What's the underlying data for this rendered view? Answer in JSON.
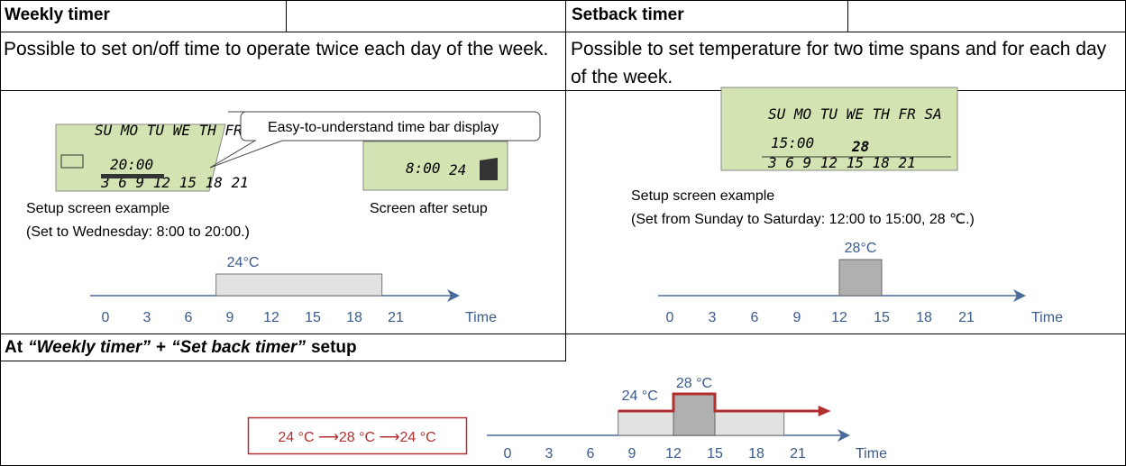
{
  "weekly": {
    "title": "Weekly timer",
    "description": "Possible to set on/off time to operate twice each day of the week.",
    "callout": "Easy-to-understand time bar display",
    "setup_lcd": {
      "days": "SU MO TU WE TH FR SA",
      "time": "20:00",
      "hours": "3 6 9 12 15 18 21"
    },
    "setup_caption": "Setup screen example",
    "setup_note": "(Set to Wednesday: 8:00 to 20:00.)",
    "after_lcd": {
      "time": "8:00",
      "temp": "24"
    },
    "after_caption": "Screen after setup",
    "timeline": {
      "ticks": [
        0,
        3,
        6,
        9,
        12,
        15,
        18,
        21
      ],
      "axis_label": "Time",
      "bar": {
        "label": "24°C",
        "start": 8,
        "end": 20
      }
    }
  },
  "setback": {
    "title": "Setback timer",
    "description": "Possible to set temperature for two time spans and for each day of the week.",
    "lcd": {
      "days": "SU MO TU WE TH FR SA",
      "time": "15:00",
      "temp": "28",
      "hours": "3 6 9 12 15 18 21"
    },
    "caption": "Setup screen example",
    "note": "(Set from Sunday to Saturday: 12:00 to 15:00, 28 ℃.)",
    "timeline": {
      "ticks": [
        0,
        3,
        6,
        9,
        12,
        15,
        18,
        21
      ],
      "axis_label": "Time",
      "bar": {
        "label": "28°C",
        "start": 12,
        "end": 15
      }
    }
  },
  "combined": {
    "title_parts": [
      "At",
      "“Weekly timer”",
      "+",
      "“Set back timer”",
      "setup"
    ],
    "summary": "24 °C ⟶28 °C ⟶24 °C",
    "timeline": {
      "ticks": [
        0,
        3,
        6,
        9,
        12,
        15,
        18,
        21
      ],
      "axis_label": "Time",
      "base": {
        "label": "24 °C",
        "start": 8,
        "end": 20
      },
      "peak": {
        "label": "28 °C",
        "start": 12,
        "end": 15
      }
    }
  }
}
